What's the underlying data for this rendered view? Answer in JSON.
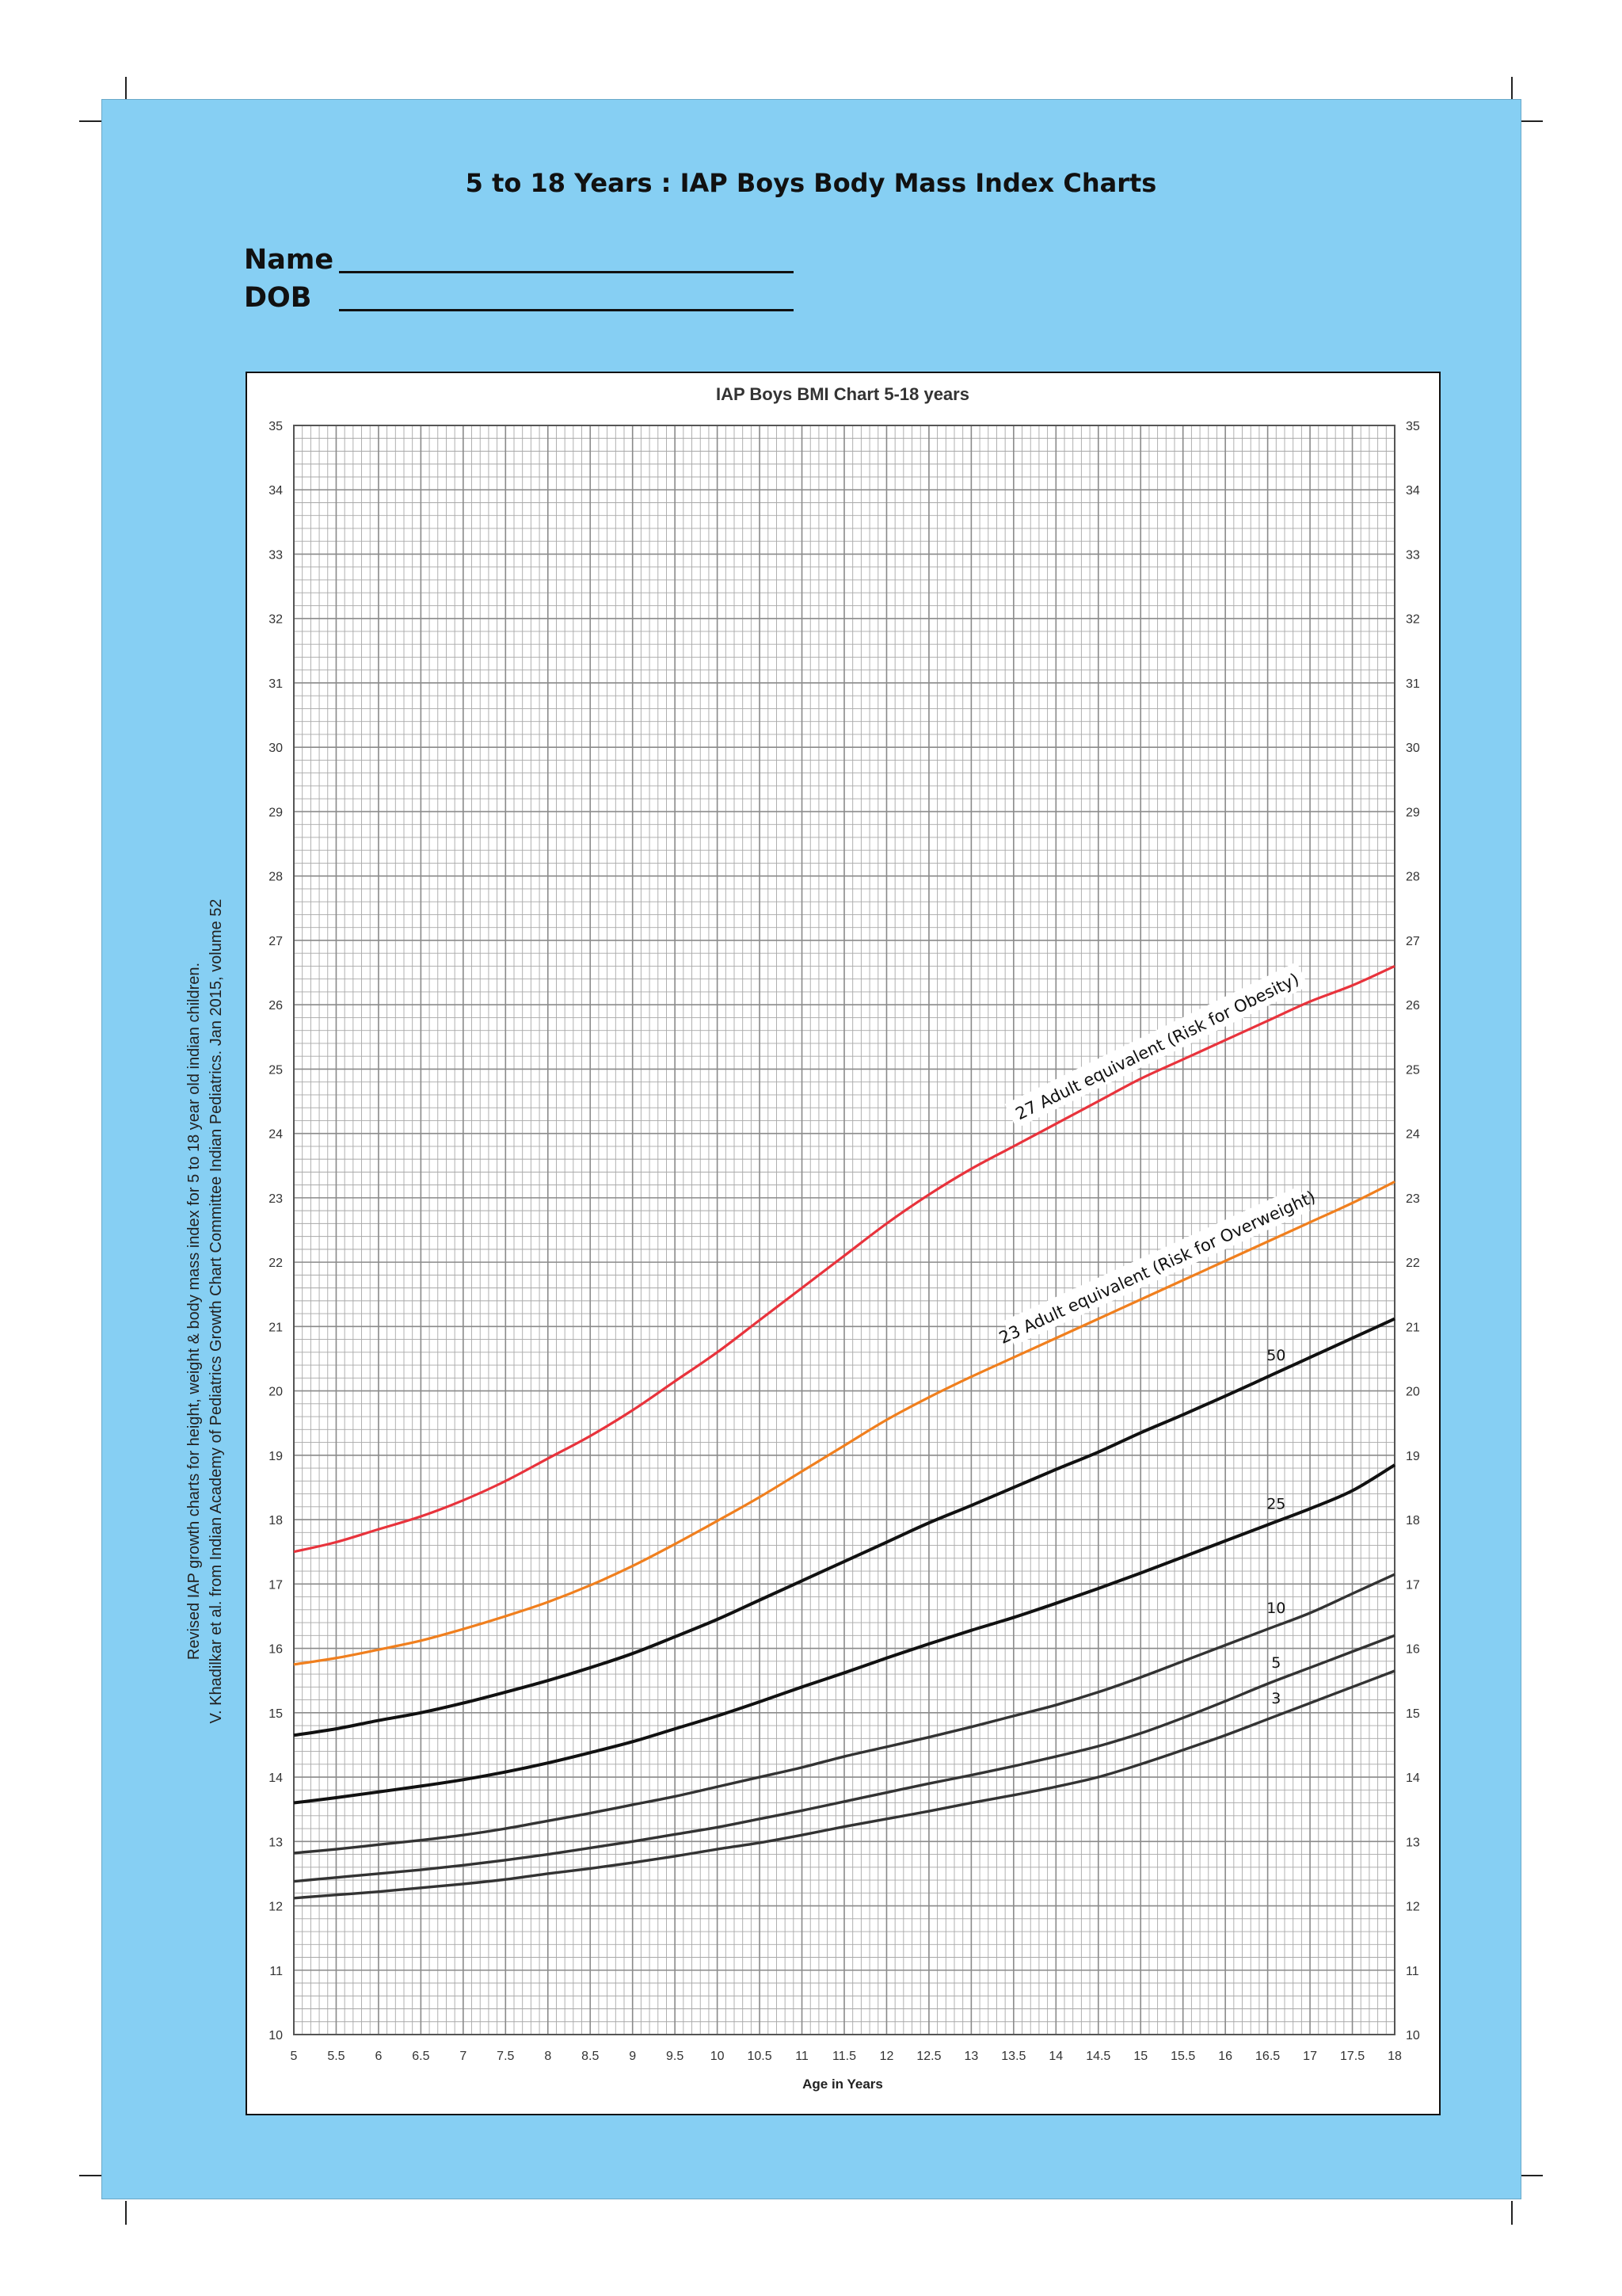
{
  "header": {
    "title": "5 to 18 Years : IAP Boys Body Mass Index Charts",
    "name_label": "Name",
    "dob_label": "DOB"
  },
  "citation": {
    "line1": "Revised IAP growth charts for height, weight & body mass index for 5 to 18 year old indian children.",
    "line2": "V. Khadilkar et al. from Indian Academy of Pediatrics Growth Chart Committee Indian Pediatrics. Jan 2015, volume 52"
  },
  "colors": {
    "panel_bg": "#86cff3",
    "grid": "#a8a8a8",
    "obesity_line": "#e8333c",
    "overweight_line": "#f07f1e",
    "p50_line": "#111111",
    "p25_line": "#111111",
    "low_percentile_line": "#333333"
  },
  "chart_data": {
    "type": "line",
    "title": "IAP Boys  BMI Chart 5-18 years",
    "xlabel": "Age in Years",
    "ylabel": "",
    "xlim": [
      5,
      18
    ],
    "ylim": [
      10,
      35
    ],
    "grid": true,
    "x_ticks": [
      5,
      5.5,
      6,
      6.5,
      7,
      7.5,
      8,
      8.5,
      9,
      9.5,
      10,
      10.5,
      11,
      11.5,
      12,
      12.5,
      13,
      13.5,
      14,
      14.5,
      15,
      15.5,
      16,
      16.5,
      17,
      17.5,
      18
    ],
    "y_ticks": [
      10,
      11,
      12,
      13,
      14,
      15,
      16,
      17,
      18,
      19,
      20,
      21,
      22,
      23,
      24,
      25,
      26,
      27,
      28,
      29,
      30,
      31,
      32,
      33,
      34,
      35
    ],
    "x": [
      5,
      5.5,
      6,
      6.5,
      7,
      7.5,
      8,
      8.5,
      9,
      9.5,
      10,
      10.5,
      11,
      11.5,
      12,
      12.5,
      13,
      13.5,
      14,
      14.5,
      15,
      15.5,
      16,
      16.5,
      17,
      17.5,
      18
    ],
    "series": [
      {
        "name": "27 Adult equivalent (Risk for Obesity)",
        "label_x": 15.2,
        "values": [
          17.5,
          17.65,
          17.85,
          18.05,
          18.3,
          18.6,
          18.95,
          19.3,
          19.7,
          20.15,
          20.6,
          21.1,
          21.6,
          22.1,
          22.6,
          23.05,
          23.45,
          23.8,
          24.15,
          24.5,
          24.85,
          25.15,
          25.45,
          25.75,
          26.05,
          26.3,
          26.6
        ]
      },
      {
        "name": "23 Adult equivalent (Risk for Overweight)",
        "label_x": 15.2,
        "values": [
          15.75,
          15.85,
          15.98,
          16.12,
          16.3,
          16.5,
          16.72,
          16.98,
          17.28,
          17.62,
          17.98,
          18.35,
          18.75,
          19.15,
          19.55,
          19.9,
          20.22,
          20.52,
          20.82,
          21.12,
          21.42,
          21.72,
          22.02,
          22.32,
          22.62,
          22.92,
          23.25
        ]
      },
      {
        "name": "50",
        "label_x": 16.6,
        "values": [
          14.65,
          14.75,
          14.88,
          15.0,
          15.15,
          15.32,
          15.5,
          15.7,
          15.92,
          16.18,
          16.45,
          16.75,
          17.05,
          17.35,
          17.65,
          17.95,
          18.22,
          18.5,
          18.78,
          19.05,
          19.35,
          19.63,
          19.92,
          20.22,
          20.52,
          20.82,
          21.12
        ]
      },
      {
        "name": "25",
        "label_x": 16.6,
        "values": [
          13.6,
          13.68,
          13.77,
          13.86,
          13.96,
          14.08,
          14.22,
          14.38,
          14.55,
          14.75,
          14.95,
          15.17,
          15.4,
          15.62,
          15.85,
          16.07,
          16.28,
          16.48,
          16.7,
          16.93,
          17.17,
          17.42,
          17.67,
          17.92,
          18.17,
          18.45,
          18.85
        ]
      },
      {
        "name": "10",
        "label_x": 16.6,
        "values": [
          12.82,
          12.88,
          12.95,
          13.02,
          13.1,
          13.2,
          13.32,
          13.44,
          13.57,
          13.7,
          13.85,
          14.0,
          14.15,
          14.32,
          14.47,
          14.62,
          14.78,
          14.95,
          15.12,
          15.32,
          15.55,
          15.8,
          16.05,
          16.3,
          16.55,
          16.85,
          17.15
        ]
      },
      {
        "name": "5",
        "label_x": 16.6,
        "values": [
          12.38,
          12.44,
          12.5,
          12.56,
          12.63,
          12.71,
          12.8,
          12.9,
          13.0,
          13.11,
          13.22,
          13.35,
          13.48,
          13.62,
          13.76,
          13.9,
          14.03,
          14.17,
          14.32,
          14.48,
          14.68,
          14.92,
          15.18,
          15.45,
          15.7,
          15.95,
          16.2
        ]
      },
      {
        "name": "3",
        "label_x": 16.6,
        "values": [
          12.12,
          12.17,
          12.22,
          12.28,
          12.34,
          12.41,
          12.5,
          12.58,
          12.67,
          12.77,
          12.88,
          12.98,
          13.1,
          13.23,
          13.35,
          13.47,
          13.6,
          13.72,
          13.85,
          14.0,
          14.2,
          14.42,
          14.65,
          14.9,
          15.15,
          15.4,
          15.65
        ]
      }
    ]
  }
}
